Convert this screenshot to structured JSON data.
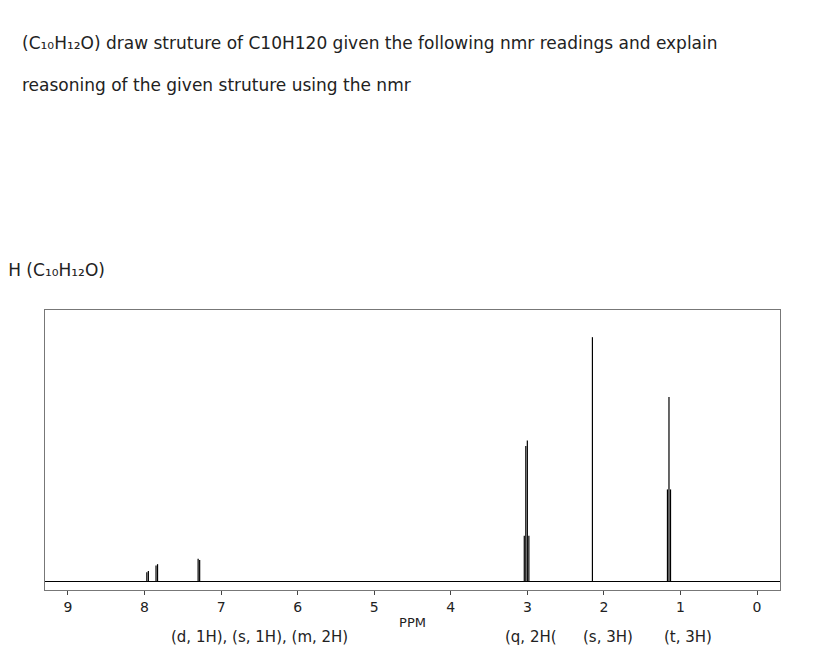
{
  "question": "(C₁₀H₁₂O) draw struture of C10H120 given the following nmr readings and explain reasoning of the given struture using the nmr",
  "chart_data": {
    "type": "stem",
    "title": "H (C₁₀H₁₂O)",
    "x_label": "PPM",
    "x": [
      7.97,
      7.95,
      7.85,
      7.83,
      7.3,
      7.28,
      3.04,
      3.02,
      3.0,
      2.98,
      2.15,
      1.17,
      1.15,
      1.13
    ],
    "values": [
      0.035,
      0.04,
      0.06,
      0.065,
      0.085,
      0.08,
      0.17,
      0.5,
      0.52,
      0.17,
      0.9,
      0.34,
      0.68,
      0.34
    ],
    "color": "#000000",
    "xlim": [
      9.3,
      -0.3
    ],
    "xticks": [
      9,
      8,
      7,
      6,
      5,
      4,
      3,
      2,
      1,
      0
    ],
    "ylim": [
      -0.03,
      1
    ],
    "tick_labels": "x",
    "grid": false,
    "annotations": [
      {
        "x": 6.5,
        "text": "(d, 1H), (s, 1H), (m, 2H)"
      },
      {
        "x": 2.95,
        "text": "(q, 2H("
      },
      {
        "x": 1.95,
        "text": "(s, 3H)"
      },
      {
        "x": 0.9,
        "text": "(t, 3H)"
      }
    ]
  }
}
